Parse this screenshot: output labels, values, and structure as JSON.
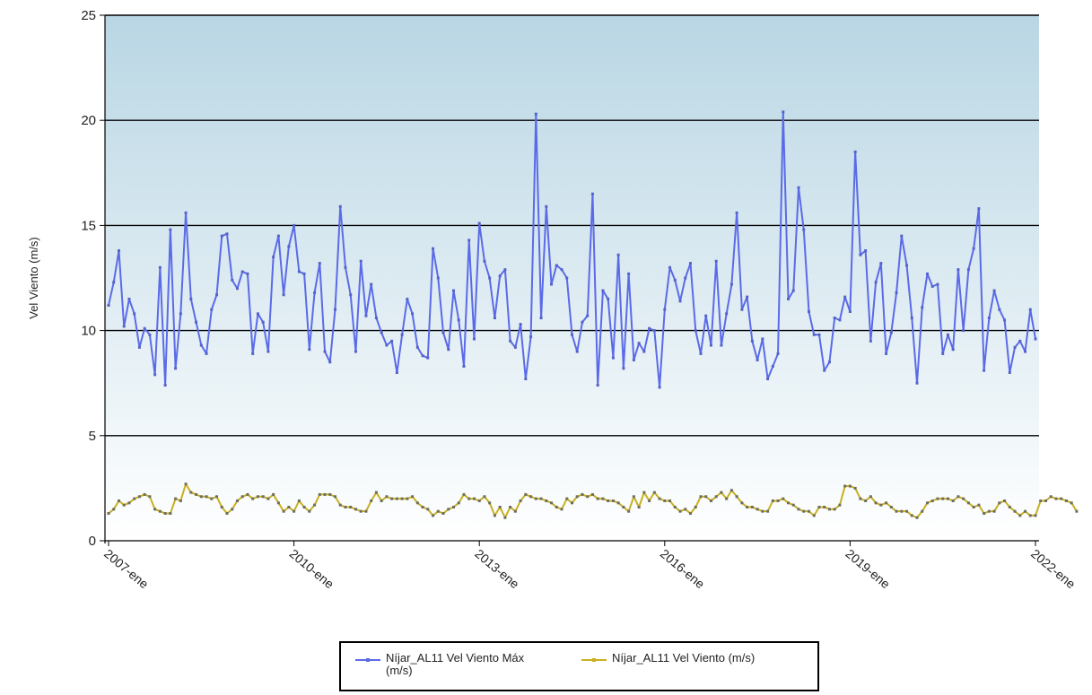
{
  "colors": {
    "series_max": "#5B6BE8",
    "series_max_marker": "#5563C8",
    "series_mean": "#C9B020",
    "series_mean_marker": "#6E6E5E",
    "grid": "#000000",
    "bg_top": "#B9D6E4",
    "bg_bottom": "#FFFFFF"
  },
  "legend": {
    "item_max_label": "Níjar_AL11 Vel Viento Máx\n(m/s)",
    "item_mean_label": "Níjar_AL11 Vel Viento (m/s)"
  },
  "chart_data": {
    "type": "line",
    "title": "",
    "xlabel": "",
    "ylabel": "Vel Viento (m/s)",
    "ylim": [
      0,
      25
    ],
    "yticks": [
      0,
      5,
      10,
      15,
      20,
      25
    ],
    "x_start": "2007-ene",
    "x_tick_labels": [
      "2007-ene",
      "2010-ene",
      "2013-ene",
      "2016-ene",
      "2019-ene",
      "2022-ene"
    ],
    "x_tick_month_index": [
      0,
      36,
      72,
      108,
      144,
      180
    ],
    "grid": true,
    "legend_position": "bottom-center",
    "series": [
      {
        "name": "Níjar_AL11 Vel Viento Máx (m/s)",
        "values": [
          11.2,
          12.3,
          13.8,
          10.2,
          11.5,
          10.8,
          9.2,
          10.1,
          9.8,
          7.9,
          13.0,
          7.4,
          14.8,
          8.2,
          10.8,
          15.6,
          11.5,
          10.4,
          9.3,
          8.9,
          11.0,
          11.7,
          14.5,
          14.6,
          12.4,
          12.0,
          12.8,
          12.7,
          8.9,
          10.8,
          10.4,
          9.0,
          13.5,
          14.5,
          11.7,
          14.0,
          15.0,
          12.8,
          12.7,
          9.1,
          11.8,
          13.2,
          9.0,
          8.5,
          11.0,
          15.9,
          13.0,
          11.7,
          9.0,
          13.3,
          10.7,
          12.2,
          10.6,
          9.9,
          9.3,
          9.5,
          8.0,
          9.8,
          11.5,
          10.8,
          9.2,
          8.8,
          8.7,
          13.9,
          12.5,
          9.9,
          9.1,
          11.9,
          10.5,
          8.3,
          14.3,
          9.6,
          15.1,
          13.3,
          12.5,
          10.6,
          12.6,
          12.9,
          9.5,
          9.2,
          10.3,
          7.7,
          9.7,
          20.3,
          10.6,
          15.9,
          12.2,
          13.1,
          12.9,
          12.5,
          9.8,
          9.0,
          10.4,
          10.7,
          16.5,
          7.4,
          11.9,
          11.5,
          8.7,
          13.6,
          8.2,
          12.7,
          8.6,
          9.4,
          9.0,
          10.1,
          10.0,
          7.3,
          11.0,
          13.0,
          12.4,
          11.4,
          12.5,
          13.2,
          10.0,
          8.9,
          10.7,
          9.3,
          13.3,
          9.3,
          10.8,
          12.2,
          15.6,
          11.0,
          11.6,
          9.5,
          8.6,
          9.6,
          7.7,
          8.3,
          8.9,
          20.4,
          11.5,
          11.9,
          16.8,
          14.8,
          10.9,
          9.8,
          9.8,
          8.1,
          8.5,
          10.6,
          10.5,
          11.6,
          10.9,
          18.5,
          13.6,
          13.8,
          9.5,
          12.3,
          13.2,
          8.9,
          9.9,
          11.8,
          14.5,
          13.1,
          10.6,
          7.5,
          11.1,
          12.7,
          12.1,
          12.2,
          8.9,
          9.8,
          9.1,
          12.9,
          10.0,
          12.9,
          13.9,
          15.8,
          8.1,
          10.6,
          11.9,
          11.0,
          10.5,
          8.0,
          9.2,
          9.5,
          9.0,
          11.0,
          9.6
        ]
      },
      {
        "name": "Níjar_AL11 Vel Viento (m/s)",
        "values": [
          1.3,
          1.5,
          1.9,
          1.7,
          1.8,
          2.0,
          2.1,
          2.2,
          2.1,
          1.5,
          1.4,
          1.3,
          1.3,
          2.0,
          1.9,
          2.7,
          2.3,
          2.2,
          2.1,
          2.1,
          2.0,
          2.1,
          1.6,
          1.3,
          1.5,
          1.9,
          2.1,
          2.2,
          2.0,
          2.1,
          2.1,
          2.0,
          2.2,
          1.8,
          1.4,
          1.6,
          1.4,
          1.9,
          1.6,
          1.4,
          1.7,
          2.2,
          2.2,
          2.2,
          2.1,
          1.7,
          1.6,
          1.6,
          1.5,
          1.4,
          1.4,
          1.9,
          2.3,
          1.9,
          2.1,
          2.0,
          2.0,
          2.0,
          2.0,
          2.1,
          1.8,
          1.6,
          1.5,
          1.2,
          1.4,
          1.3,
          1.5,
          1.6,
          1.8,
          2.2,
          2.0,
          2.0,
          1.9,
          2.1,
          1.8,
          1.2,
          1.6,
          1.1,
          1.6,
          1.4,
          1.9,
          2.2,
          2.1,
          2.0,
          2.0,
          1.9,
          1.8,
          1.6,
          1.5,
          2.0,
          1.8,
          2.1,
          2.2,
          2.1,
          2.2,
          2.0,
          2.0,
          1.9,
          1.9,
          1.8,
          1.6,
          1.4,
          2.1,
          1.6,
          2.3,
          1.9,
          2.3,
          2.0,
          1.9,
          1.9,
          1.6,
          1.4,
          1.5,
          1.3,
          1.6,
          2.1,
          2.1,
          1.9,
          2.1,
          2.3,
          2.0,
          2.4,
          2.1,
          1.8,
          1.6,
          1.6,
          1.5,
          1.4,
          1.4,
          1.9,
          1.9,
          2.0,
          1.8,
          1.7,
          1.5,
          1.4,
          1.4,
          1.2,
          1.6,
          1.6,
          1.5,
          1.5,
          1.7,
          2.6,
          2.6,
          2.5,
          2.0,
          1.9,
          2.1,
          1.8,
          1.7,
          1.8,
          1.6,
          1.4,
          1.4,
          1.4,
          1.2,
          1.1,
          1.4,
          1.8,
          1.9,
          2.0,
          2.0,
          2.0,
          1.9,
          2.1,
          2.0,
          1.8,
          1.6,
          1.7,
          1.3,
          1.4,
          1.4,
          1.8,
          1.9,
          1.6,
          1.4,
          1.2,
          1.4,
          1.2,
          1.2,
          1.9,
          1.9,
          2.1,
          2.0,
          2.0,
          1.9,
          1.8,
          1.4
        ]
      }
    ]
  }
}
